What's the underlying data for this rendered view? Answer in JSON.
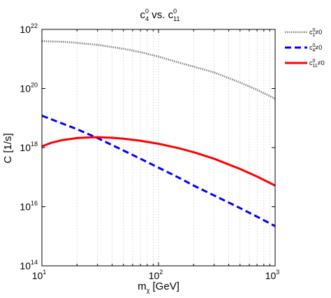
{
  "chart_data": {
    "type": "line",
    "title": {
      "base": "c",
      "sup_a": "0",
      "sub_a": "4",
      "mid": " vs. c",
      "sup_b": "0",
      "sub_b": "11"
    },
    "xlabel": {
      "base": "m",
      "sub": "χ",
      "rest": " [GeV]"
    },
    "ylabel": "C [1/s]",
    "x_scale": "log",
    "y_scale": "log",
    "xlim": [
      10,
      1000
    ],
    "ylim": [
      100000000000000.0,
      1e+22
    ],
    "x_ticks": [
      {
        "value": 10,
        "base": "10",
        "exp": "1"
      },
      {
        "value": 100,
        "base": "10",
        "exp": "2"
      },
      {
        "value": 1000,
        "base": "10",
        "exp": "3"
      }
    ],
    "y_ticks": [
      {
        "value": 100000000000000.0,
        "base": "10",
        "exp": "14"
      },
      {
        "value": 1e+16,
        "base": "10",
        "exp": "16"
      },
      {
        "value": 1e+18,
        "base": "10",
        "exp": "18"
      },
      {
        "value": 1e+20,
        "base": "10",
        "exp": "20"
      },
      {
        "value": 1e+22,
        "base": "10",
        "exp": "22"
      }
    ],
    "grid": "x-major-and-minor-dotted",
    "legend_position": "outside-top-right",
    "series": [
      {
        "legend_base": "c",
        "legend_sup": "0",
        "legend_sub": "1",
        "legend_rest": "≠0",
        "color": "#808080",
        "style": "dotted",
        "x": [
          10,
          15,
          20,
          30,
          50,
          70,
          100,
          150,
          200,
          300,
          500,
          700,
          1000
        ],
        "y": [
          4e+21,
          3.8e+21,
          3.5e+21,
          3e+21,
          2.2e+21,
          1.7e+21,
          1.2e+21,
          7.5e+20,
          5.5e+20,
          3.5e+20,
          1.6e+20,
          9e+19,
          4.5e+19
        ]
      },
      {
        "legend_base": "c",
        "legend_sup": "0",
        "legend_sub": "4",
        "legend_rest": "≠0",
        "color": "#0000ff",
        "style": "dashed",
        "x": [
          10,
          15,
          20,
          30,
          50,
          70,
          100,
          150,
          200,
          300,
          500,
          700,
          1000
        ],
        "y": [
          1.2e+19,
          6.5e+18,
          4.2e+18,
          2.1e+18,
          8e+17,
          4.2e+17,
          2.1e+17,
          9.5e+16,
          5.2e+16,
          2.4e+16,
          9000000000000000.0,
          4600000000000000.0,
          2200000000000000.0
        ]
      },
      {
        "legend_base": "c",
        "legend_sup": "0",
        "legend_sub": "11",
        "legend_rest": "≠0",
        "color": "#ff0000",
        "style": "solid",
        "x": [
          10,
          12,
          15,
          20,
          25,
          30,
          40,
          50,
          70,
          100,
          150,
          200,
          300,
          500,
          700,
          1000
        ],
        "y": [
          1.1e+18,
          1.45e+18,
          1.8e+18,
          2.1e+18,
          2.2e+18,
          2.25e+18,
          2.15e+18,
          2e+18,
          1.7e+18,
          1.35e+18,
          9.5e+17,
          7e+17,
          4.2e+17,
          1.9e+17,
          1.05e+17,
          5.2e+16
        ]
      }
    ]
  }
}
